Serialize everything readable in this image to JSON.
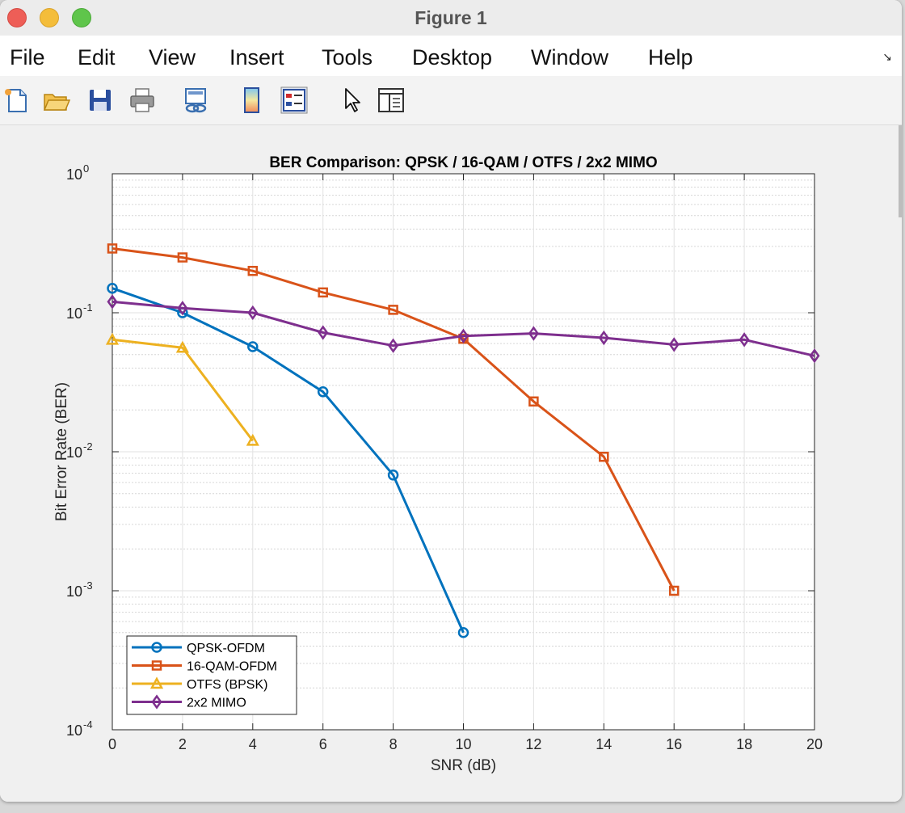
{
  "window": {
    "title": "Figure 1"
  },
  "menu": {
    "items": [
      "File",
      "Edit",
      "View",
      "Insert",
      "Tools",
      "Desktop",
      "Window",
      "Help"
    ]
  },
  "toolbar": {
    "icons": [
      "new-figure-icon",
      "open-file-icon",
      "save-icon",
      "print-icon",
      "link-plot-icon",
      "colorbar-icon",
      "legend-icon",
      "edit-plot-icon",
      "property-inspector-icon"
    ]
  },
  "colors": {
    "qpsk": "#0072bd",
    "qam16": "#d95319",
    "otfs": "#edb120",
    "mimo": "#7e2f8e"
  },
  "chart_data": {
    "type": "line",
    "title": "BER Comparison: QPSK / 16-QAM / OTFS / 2x2 MIMO",
    "xlabel": "SNR (dB)",
    "ylabel": "Bit Error Rate (BER)",
    "yscale": "log",
    "xlim": [
      0,
      20
    ],
    "ylim": [
      0.0001,
      1
    ],
    "grid": true,
    "minor_grid": true,
    "legend_position": "bottom-left",
    "x_ticks": [
      "0",
      "2",
      "4",
      "6",
      "8",
      "10",
      "12",
      "14",
      "16",
      "18",
      "20"
    ],
    "y_ticks": [
      {
        "base": "10",
        "exp": "-4"
      },
      {
        "base": "10",
        "exp": "-3"
      },
      {
        "base": "10",
        "exp": "-2"
      },
      {
        "base": "10",
        "exp": "-1"
      },
      {
        "base": "10",
        "exp": "0"
      }
    ],
    "series": [
      {
        "name": "QPSK-OFDM",
        "color": "#0072bd",
        "marker": "circle",
        "x": [
          0,
          2,
          4,
          6,
          8,
          10
        ],
        "y": [
          0.15,
          0.1,
          0.057,
          0.027,
          0.0068,
          0.0005
        ]
      },
      {
        "name": "16-QAM-OFDM",
        "color": "#d95319",
        "marker": "square",
        "x": [
          0,
          2,
          4,
          6,
          8,
          10,
          12,
          14,
          16
        ],
        "y": [
          0.29,
          0.25,
          0.2,
          0.14,
          0.105,
          0.065,
          0.023,
          0.0092,
          0.001
        ]
      },
      {
        "name": "OTFS (BPSK)",
        "color": "#edb120",
        "marker": "triangle",
        "x": [
          0,
          2,
          4
        ],
        "y": [
          0.064,
          0.056,
          0.012
        ]
      },
      {
        "name": "2x2 MIMO",
        "color": "#7e2f8e",
        "marker": "diamond",
        "x": [
          0,
          2,
          4,
          6,
          8,
          10,
          12,
          14,
          16,
          18,
          20
        ],
        "y": [
          0.12,
          0.108,
          0.1,
          0.072,
          0.058,
          0.068,
          0.071,
          0.066,
          0.059,
          0.064,
          0.049
        ]
      }
    ]
  }
}
